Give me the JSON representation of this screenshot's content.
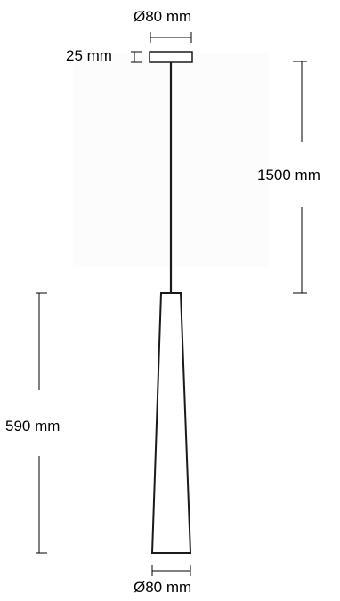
{
  "dimensions": {
    "canopy_diameter": "Ø80 mm",
    "canopy_height": "25 mm",
    "cable_length": "1500 mm",
    "shade_height": "590 mm",
    "shade_bottom_diameter": "Ø80 mm"
  },
  "colors": {
    "line": "#1a1a1a",
    "dimension_line": "#000000",
    "backdrop": "#fcfcfc"
  }
}
